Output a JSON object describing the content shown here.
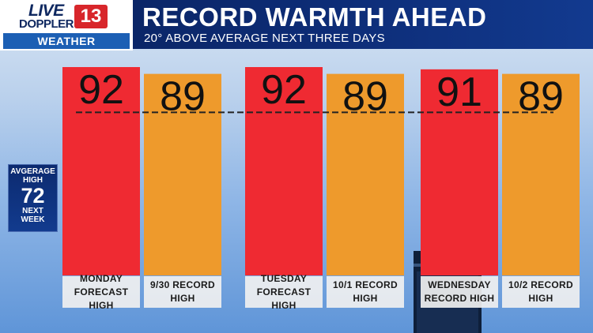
{
  "header": {
    "logo_line1": "LIVE",
    "logo_line2": "DOPPLER",
    "logo_number": "13",
    "logo_section": "WEATHER",
    "title": "RECORD WARMTH AHEAD",
    "subtitle": "20° ABOVE AVERAGE NEXT THREE DAYS"
  },
  "average_box": {
    "label": "AVGERAGE HIGH",
    "value": "72",
    "period": "NEXT WEEK"
  },
  "colors": {
    "forecast_bar": "#ef2a32",
    "record_bar": "#ee9a2c",
    "header_bg": "#0b2565",
    "value_text": "#111111",
    "average_line": "#222222"
  },
  "chart_data": {
    "type": "bar",
    "categories": [
      "MONDAY FORECAST HIGH",
      "9/30 RECORD HIGH",
      "TUESDAY FORECAST HIGH",
      "10/1 RECORD HIGH",
      "WEDNESDAY RECORD HIGH",
      "10/2 RECORD HIGH"
    ],
    "label_lines": [
      [
        "MONDAY",
        "FORECAST HIGH"
      ],
      [
        "9/30 RECORD",
        "HIGH"
      ],
      [
        "TUESDAY",
        "FORECAST HIGH"
      ],
      [
        "10/1 RECORD",
        "HIGH"
      ],
      [
        "WEDNESDAY",
        "RECORD HIGH"
      ],
      [
        "10/2 RECORD",
        "HIGH"
      ]
    ],
    "values": [
      92,
      89,
      92,
      89,
      91,
      89
    ],
    "bar_kind": [
      "forecast",
      "record",
      "forecast",
      "record",
      "forecast",
      "record"
    ],
    "reference_line": {
      "value": 72
    },
    "title": "RECORD WARMTH AHEAD",
    "xlabel": "",
    "ylabel": "",
    "ylim": [
      0,
      92
    ],
    "grid": false
  }
}
